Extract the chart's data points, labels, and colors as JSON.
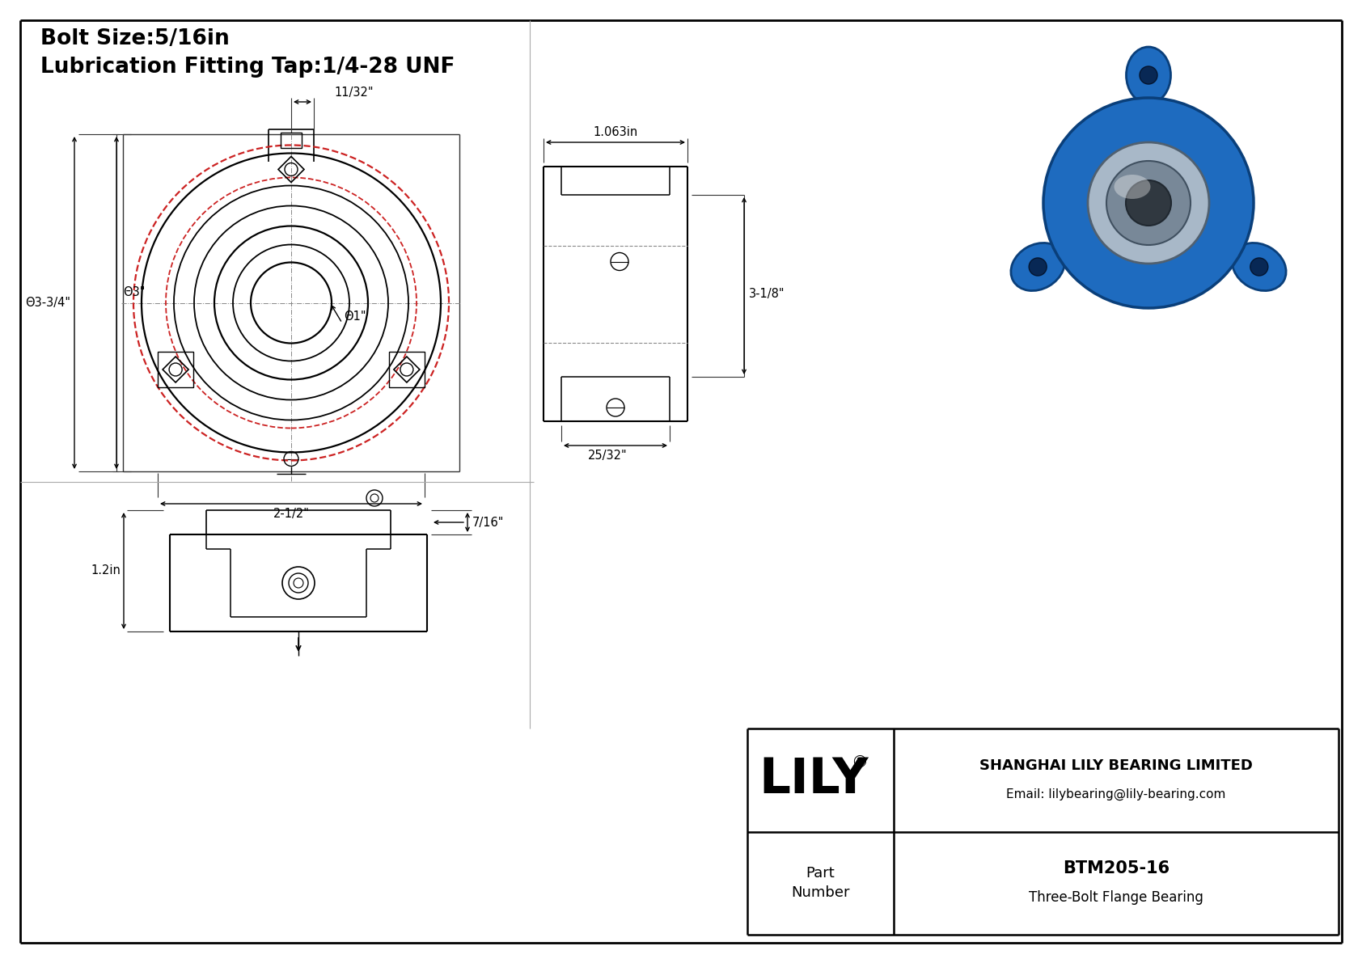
{
  "bg_color": "#ffffff",
  "border_color": "#000000",
  "line_color": "#000000",
  "dim_line_color": "#333333",
  "red_color": "#cc2222",
  "title_line1": "Bolt Size:5/16in",
  "title_line2": "Lubrication Fitting Tap:1/4-28 UNF",
  "company": "SHANGHAI LILY BEARING LIMITED",
  "email": "Email: lilybearing@lily-bearing.com",
  "part_label": "Part\nNumber",
  "part_number": "BTM205-16",
  "part_desc": "Three-Bolt Flange Bearing",
  "brand": "LILY",
  "dim_11_32": "11/32\"",
  "dim_3_34": "Θ3-3/4\"",
  "dim_3": "Θ3\"",
  "dim_1": "Θ1\"",
  "dim_2_12": "2-1/2\"",
  "dim_1063": "1.063in",
  "dim_3_18": "3-1/8\"",
  "dim_25_32": "25/32\"",
  "dim_7_16": "7/16\"",
  "dim_12": "1.2in"
}
